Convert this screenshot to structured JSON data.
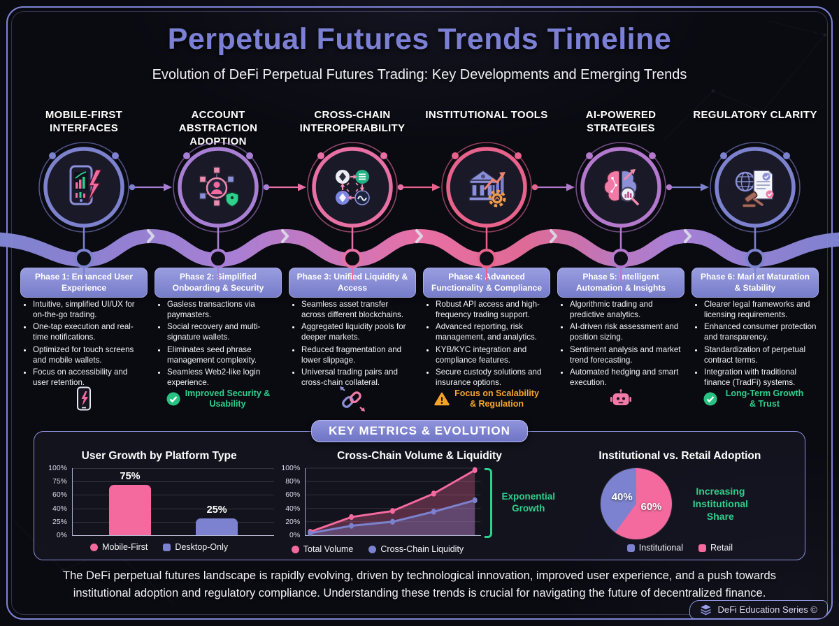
{
  "header": {
    "title": "Perpetual Futures Trends Timeline",
    "subtitle": "Evolution of DeFi Perpetual Futures Trading: Key Developments and Emerging Trends"
  },
  "timeline": {
    "columns": [
      {
        "heading": "MOBILE-FIRST INTERFACES",
        "icon": "smartphone-trading-icon",
        "ring_color": "#7d82cf",
        "phase": "Phase 1: Enhanced User Experience",
        "bullets": [
          "Intuitive, simplified UI/UX for on-the-go trading.",
          "One-tap execution and real-time notifications.",
          "Optimized for touch screens and mobile wallets.",
          "Focus on accessibility and user retention."
        ],
        "footnote": ""
      },
      {
        "heading": "ACCOUNT ABSTRACTION ADOPTION",
        "icon": "network-wallet-icon",
        "ring_color": "#a87fd4",
        "phase": "Phase 2: Simplified Onboarding & Security",
        "bullets": [
          "Gasless transactions via paymasters.",
          "Social recovery and multi-signature wallets.",
          "Eliminates seed phrase management complexity.",
          "Seamless Web2-like login experience."
        ],
        "footnote": "Improved Security & Usability",
        "footnote_color": "#2fd08c"
      },
      {
        "heading": "CROSS-CHAIN INTEROPERABILITY",
        "icon": "crypto-tokens-icon",
        "ring_color": "#e870a5",
        "phase": "Phase 3: Unified Liquidity & Access",
        "bullets": [
          "Seamless asset transfer across different blockchains.",
          "Aggregated liquidity pools for deeper markets.",
          "Reduced fragmentation and lower slippage.",
          "Universal trading pairs and cross-chain collateral."
        ],
        "footnote": ""
      },
      {
        "heading": "INSTITUTIONAL TOOLS",
        "icon": "bank-growth-icon",
        "ring_color": "#e8638c",
        "phase": "Phase 4: Advanced Functionality & Compliance",
        "bullets": [
          "Robust API access and high-frequency trading support.",
          "Advanced reporting, risk management, and analytics.",
          "KYB/KYC integration and compliance features.",
          "Secure custody solutions and insurance options."
        ],
        "footnote": "Focus on Scalability & Regulation",
        "footnote_color": "#f7a62a"
      },
      {
        "heading": "AI-POWERED STRATEGIES",
        "icon": "ai-brain-icon",
        "ring_color": "#b478cc",
        "phase": "Phase 5: Intelligent Automation & Insights",
        "bullets": [
          "Algorithmic trading and predictive analytics.",
          "AI-driven risk assessment and position sizing.",
          "Sentiment analysis and market trend forecasting.",
          "Automated hedging and smart execution."
        ],
        "footnote": ""
      },
      {
        "heading": "REGULATORY CLARITY",
        "icon": "gavel-document-icon",
        "ring_color": "#7d82cf",
        "phase": "Phase 6: Market Maturation & Stability",
        "bullets": [
          "Clearer legal frameworks and licensing requirements.",
          "Enhanced consumer protection and transparency.",
          "Standardization of perpetual contract terms.",
          "Integration with traditional finance (TradFi) systems."
        ],
        "footnote": "Long-Term Growth & Trust",
        "footnote_color": "#2fd08c"
      }
    ]
  },
  "metrics": {
    "section_title": "KEY METRICS & EVOLUTION"
  },
  "chart_data": [
    {
      "type": "bar",
      "title": "User Growth by Platform Type",
      "categories": [
        "Mobile-First",
        "Desktop-Only"
      ],
      "values": [
        75,
        25
      ],
      "value_labels": [
        "75%",
        "25%"
      ],
      "colors": [
        "#f56a9e",
        "#7c82cf"
      ],
      "yticks": [
        "100%",
        "75%",
        "60%",
        "40%",
        "25%",
        "0%"
      ],
      "ylim": [
        0,
        100
      ],
      "grid": true,
      "legend": [
        {
          "label": "Mobile-First",
          "color": "#f56a9e",
          "shape": "circle"
        },
        {
          "label": "Desktop-Only",
          "color": "#7c82cf",
          "shape": "square"
        }
      ]
    },
    {
      "type": "line",
      "title": "Cross-Chain Volume & Liquidity",
      "x": [
        1,
        2,
        3,
        4,
        5
      ],
      "series": [
        {
          "name": "Total Volume",
          "color": "#f56a9e",
          "values": [
            5,
            27,
            36,
            62,
            97
          ]
        },
        {
          "name": "Cross-Chain Liquidity",
          "color": "#7c82cf",
          "values": [
            3,
            14,
            20,
            35,
            52
          ]
        }
      ],
      "yticks": [
        "100%",
        "80%",
        "60%",
        "40%",
        "20%",
        "0%"
      ],
      "ylim": [
        0,
        100
      ],
      "grid": true,
      "annotation": "Exponential Growth",
      "annotation_color": "#2fd08c",
      "legend": [
        {
          "label": "Total Volume",
          "color": "#f56a9e",
          "shape": "circle"
        },
        {
          "label": "Cross-Chain Liquidity",
          "color": "#7c82cf",
          "shape": "circle"
        }
      ]
    },
    {
      "type": "pie",
      "title": "Institutional vs. Retail Adoption",
      "slices": [
        {
          "label": "Retail",
          "value": 60,
          "display": "60%",
          "color": "#f56a9e"
        },
        {
          "label": "Institutional",
          "value": 40,
          "display": "40%",
          "color": "#7c82cf"
        }
      ],
      "annotation": "Increasing Institutional Share",
      "annotation_color": "#2fd08c",
      "legend": [
        {
          "label": "Institutional",
          "color": "#7c82cf",
          "shape": "square"
        },
        {
          "label": "Retail",
          "color": "#f56a9e",
          "shape": "square"
        }
      ]
    }
  ],
  "footer": {
    "text": "The DeFi perpetual futures landscape is rapidly evolving, driven by technological innovation, improved user experience, and a push towards institutional adoption and regulatory compliance. Understanding these trends is crucial for navigating the future of decentralized finance."
  },
  "brand": {
    "label": "DeFi Education Series ©"
  }
}
